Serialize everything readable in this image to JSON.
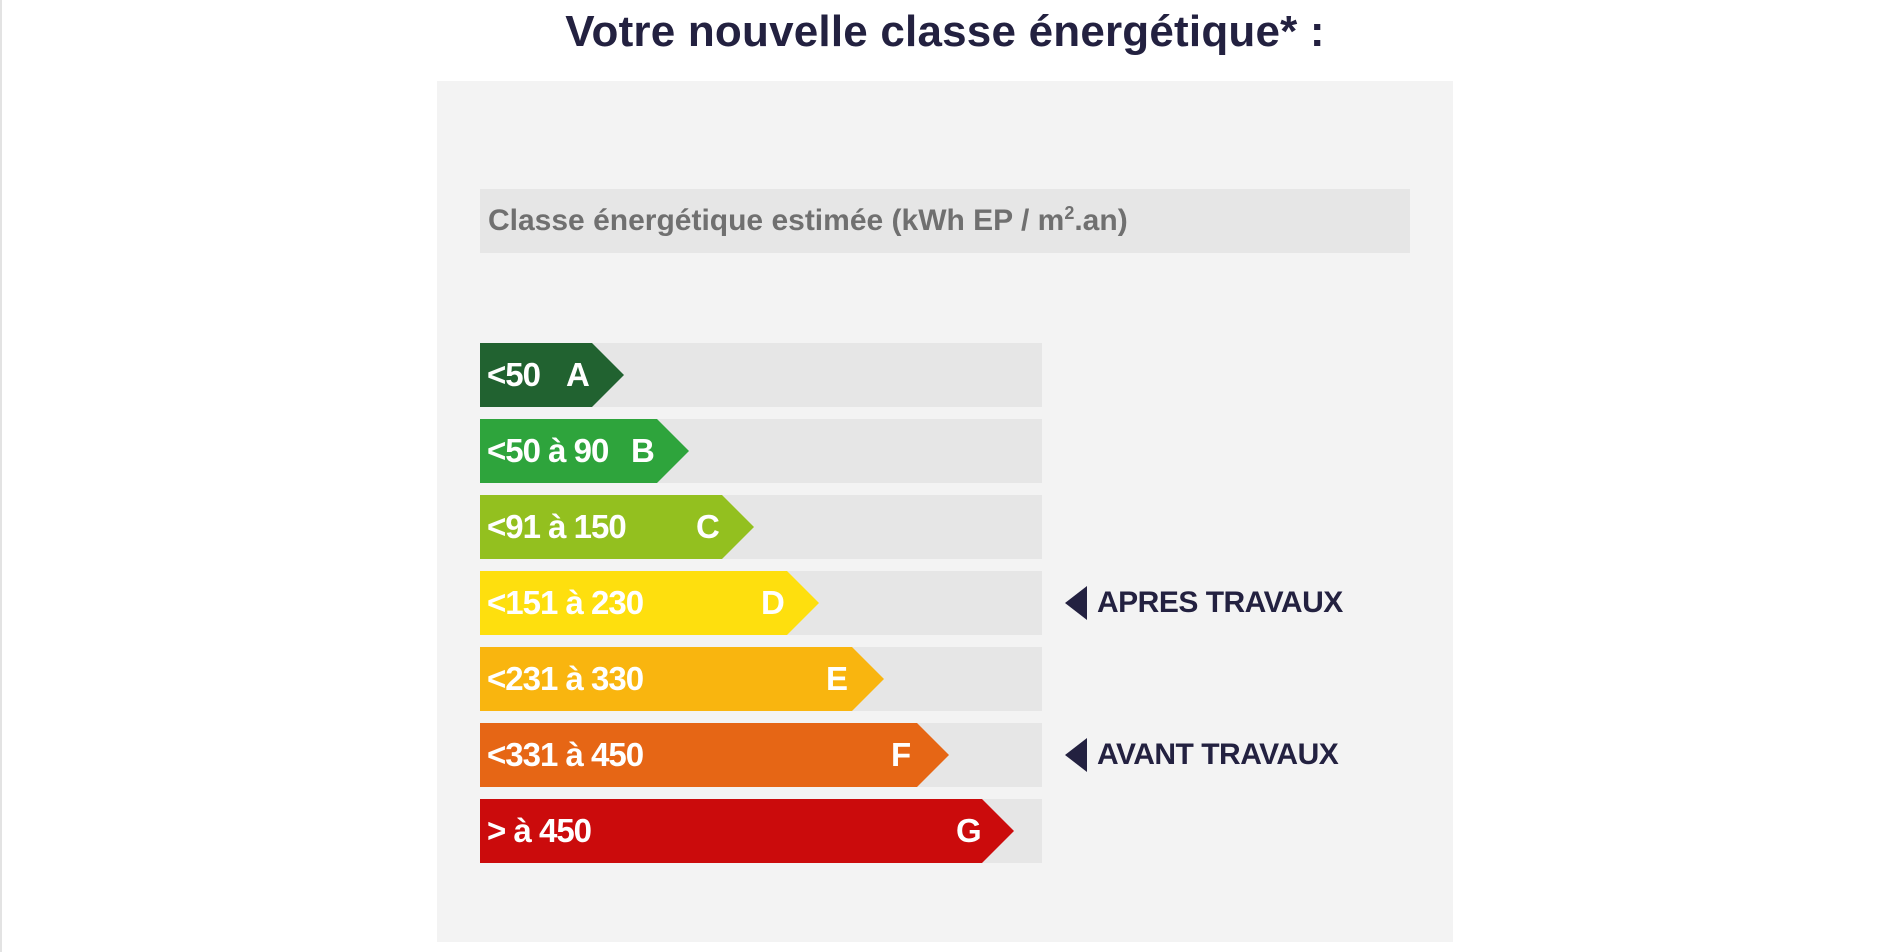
{
  "title": "Votre nouvelle classe énergétique* :",
  "chart": {
    "subtitle_main": "Classe énergétique estimée (kWh EP / m",
    "subtitle_sup": "2",
    "subtitle_end": ".an)",
    "classes": [
      {
        "range": "<50",
        "letter": "A",
        "color": "#216230",
        "level": 1
      },
      {
        "range": "<50 à 90",
        "letter": "B",
        "color": "#2ea43c",
        "level": 2
      },
      {
        "range": "<91 à 150",
        "letter": "C",
        "color": "#93c01f",
        "level": 3
      },
      {
        "range": "<151 à 230",
        "letter": "D",
        "color": "#fedf0e",
        "level": 4
      },
      {
        "range": "<231 à 330",
        "letter": "E",
        "color": "#f9b50f",
        "level": 5
      },
      {
        "range": "<331 à 450",
        "letter": "F",
        "color": "#e66615",
        "level": 6
      },
      {
        "range": "> à 450",
        "letter": "G",
        "color": "#cb0b0c",
        "level": 7
      }
    ],
    "markers": {
      "after": {
        "label": "APRES TRAVAUX",
        "class": "D"
      },
      "before": {
        "label": "AVANT TRAVAUX",
        "class": "F"
      }
    },
    "marker_color": "#232140",
    "row_background": "#e6e6e6",
    "panel_background": "#f3f3f3"
  }
}
